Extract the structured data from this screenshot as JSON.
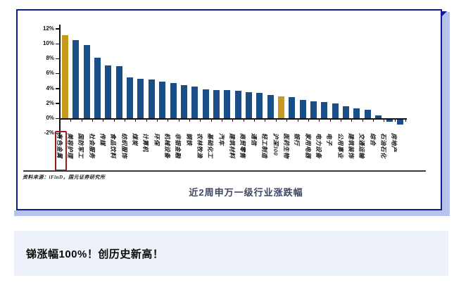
{
  "chart_panel": {
    "border_color": "#0c1e94",
    "shadow_color": "#b8c2ea",
    "source_note": "资料来源：iFinD，国元证券研究所",
    "caption": "近2周申万一级行业涨跌幅"
  },
  "chart_data": {
    "type": "bar",
    "title": "近2周申万一级行业涨跌幅",
    "xlabel": "",
    "ylabel": "",
    "ylim": [
      -2,
      12
    ],
    "ytick_step": 2,
    "yticks_labels": [
      "12%",
      "10%",
      "8%",
      "6%",
      "4%",
      "2%",
      "0%",
      "-2%"
    ],
    "grid": false,
    "legend": "none",
    "bar_color": "#1a4e87",
    "highlight_color": "#c9981f",
    "highlighted_categories": [
      "有色金属",
      "沪深300"
    ],
    "boxed_category": "有色金属",
    "box_color": "#9b1b1b",
    "categories": [
      "有色金属",
      "美容护理",
      "国防军工",
      "社会服务",
      "传媒",
      "食品饮料",
      "纺织服饰",
      "煤炭",
      "计算机",
      "环保",
      "机械设备",
      "非银金融",
      "钢铁",
      "农林牧渔",
      "基础化工",
      "汽车",
      "建筑材料",
      "商贸零售",
      "通信",
      "轻工制造",
      "沪深300",
      "医药生物",
      "银行",
      "家用电器",
      "电力设备",
      "电子",
      "公用事业",
      "建筑装饰",
      "交通运输",
      "综合",
      "石油石化",
      "房地产"
    ],
    "values": [
      11.1,
      10.5,
      9.8,
      8.1,
      7.1,
      7.0,
      5.5,
      5.3,
      5.2,
      4.9,
      4.7,
      4.4,
      4.2,
      3.9,
      3.8,
      3.8,
      3.7,
      3.5,
      3.4,
      3.1,
      2.9,
      2.8,
      2.5,
      2.3,
      2.2,
      2.0,
      1.6,
      1.3,
      1.1,
      0.4,
      -0.3,
      -0.7
    ]
  },
  "footer": {
    "headline": "锑涨幅100%！创历史新高！",
    "accent_color": "#3a4cb1",
    "background": "#edf1fa"
  }
}
